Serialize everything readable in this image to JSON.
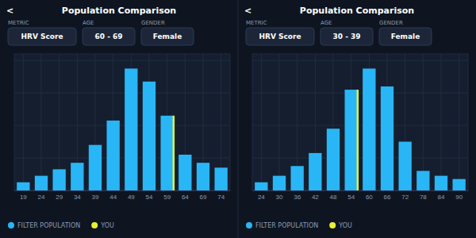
{
  "chart_data": [
    {
      "type": "bar",
      "title": "Population Comparison",
      "annotations": [
        {
          "text": "<"
        },
        {
          "label": "METRIC",
          "text": "HRV Score"
        },
        {
          "label": "AGE",
          "text": "60 - 69"
        },
        {
          "label": "GENDER",
          "text": "Female"
        }
      ],
      "categories": [
        "19",
        "24",
        "29",
        "34",
        "39",
        "44",
        "49",
        "54",
        "59",
        "64",
        "69",
        "74"
      ],
      "series": [
        {
          "name": "FILTER POPULATION",
          "color": "#29b6f6",
          "type": "bar",
          "values": [
            0.05,
            0.09,
            0.13,
            0.17,
            0.28,
            0.43,
            0.75,
            0.67,
            0.46,
            0.22,
            0.17,
            0.14
          ]
        },
        {
          "name": "YOU",
          "color": "#e8f032",
          "type": "rule",
          "values": [
            null,
            null,
            null,
            null,
            null,
            null,
            null,
            null,
            0.46,
            null,
            null,
            null
          ]
        }
      ],
      "ylim": [
        0,
        0.84
      ],
      "yticks": [
        0,
        0.2,
        0.4,
        0.6,
        0.8
      ],
      "grid": true,
      "tick_labels": "x",
      "legend": "bottom"
    },
    {
      "type": "bar",
      "title": "Population Comparison",
      "annotations": [
        {
          "text": "<"
        },
        {
          "label": "METRIC",
          "text": "HRV Score"
        },
        {
          "label": "AGE",
          "text": "30 - 39"
        },
        {
          "label": "GENDER",
          "text": "Female"
        }
      ],
      "categories": [
        "24",
        "30",
        "36",
        "42",
        "48",
        "54",
        "60",
        "66",
        "72",
        "78",
        "84",
        "90"
      ],
      "series": [
        {
          "name": "FILTER POPULATION",
          "color": "#29b6f6",
          "type": "bar",
          "values": [
            0.05,
            0.09,
            0.15,
            0.23,
            0.38,
            0.62,
            0.75,
            0.64,
            0.3,
            0.12,
            0.09,
            0.07
          ]
        },
        {
          "name": "YOU",
          "color": "#e8f032",
          "type": "rule",
          "values": [
            null,
            null,
            null,
            null,
            null,
            0.62,
            null,
            null,
            null,
            null,
            null,
            null
          ]
        }
      ],
      "ylim": [
        0,
        0.84
      ],
      "yticks": [
        0,
        0.2,
        0.4,
        0.6,
        0.8
      ],
      "grid": true,
      "tick_labels": "x",
      "legend": "bottom"
    }
  ]
}
